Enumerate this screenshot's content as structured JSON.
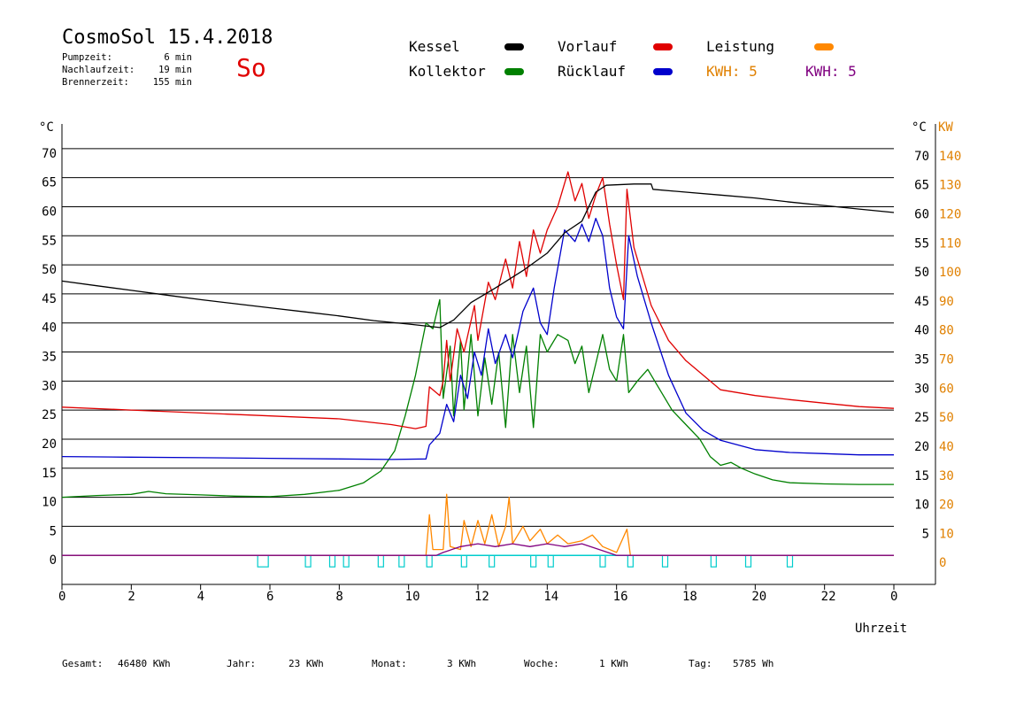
{
  "header": {
    "title": "CosmoSol 15.4.2018",
    "day": "So",
    "stats": [
      {
        "label": "Pumpzeit:",
        "value": "6 min"
      },
      {
        "label": "Nachlaufzeit:",
        "value": "19 min"
      },
      {
        "label": "Brennerzeit:",
        "value": "155 min"
      }
    ]
  },
  "legend": {
    "kessel": {
      "label": "Kessel",
      "color": "#000000"
    },
    "kollektor": {
      "label": "Kollektor",
      "color": "#008000"
    },
    "vorlauf": {
      "label": "Vorlauf",
      "color": "#e00000"
    },
    "ruecklauf": {
      "label": "Rücklauf",
      "color": "#0000cc"
    },
    "leistung": {
      "label": "Leistung",
      "color": "#ff8800"
    },
    "kwh1": {
      "label": "KWH: 5",
      "color": "#e08000"
    },
    "kwh2": {
      "label": "KWH: 5",
      "color": "#800080"
    }
  },
  "footer": [
    {
      "label": "Gesamt:",
      "value": "46480 KWh"
    },
    {
      "label": "Jahr:",
      "value": "23 KWh"
    },
    {
      "label": "Monat:",
      "value": "3 KWh"
    },
    {
      "label": "Woche:",
      "value": "1 KWh"
    },
    {
      "label": "Tag:",
      "value": "5785 Wh"
    }
  ],
  "chart_data": {
    "type": "line",
    "xlabel": "Uhrzeit",
    "ylabel_left": "°C",
    "ylabel_right_temp": "°C",
    "ylabel_right_power": "KW",
    "xlim": [
      0,
      24
    ],
    "ylim": [
      -5,
      75
    ],
    "x_ticks": [
      "0",
      "2",
      "4",
      "6",
      "8",
      "10",
      "12",
      "14",
      "16",
      "18",
      "20",
      "22",
      "0"
    ],
    "y_ticks_left": [
      "0",
      "5",
      "10",
      "15",
      "20",
      "25",
      "30",
      "35",
      "40",
      "45",
      "50",
      "55",
      "60",
      "65",
      "70"
    ],
    "y_ticks_right_temp": [
      "5",
      "10",
      "15",
      "20",
      "25",
      "30",
      "35",
      "40",
      "45",
      "50",
      "55",
      "60",
      "65",
      "70"
    ],
    "y_ticks_right_power": [
      "0",
      "10",
      "20",
      "30",
      "40",
      "50",
      "60",
      "70",
      "80",
      "90",
      "100",
      "110",
      "120",
      "130",
      "140"
    ],
    "grid": "horizontal",
    "series": [
      {
        "name": "Kessel",
        "color": "#000000",
        "points": [
          [
            0,
            47.2
          ],
          [
            1,
            46.4
          ],
          [
            2,
            45.6
          ],
          [
            3,
            44.8
          ],
          [
            4,
            44
          ],
          [
            5,
            43.3
          ],
          [
            6,
            42.6
          ],
          [
            7,
            41.9
          ],
          [
            8,
            41.2
          ],
          [
            9,
            40.4
          ],
          [
            10,
            39.8
          ],
          [
            10.9,
            39.2
          ],
          [
            11.3,
            40.5
          ],
          [
            11.8,
            43.5
          ],
          [
            12.5,
            46
          ],
          [
            13.3,
            49
          ],
          [
            14,
            52
          ],
          [
            14.5,
            55.5
          ],
          [
            15,
            57.5
          ],
          [
            15.4,
            62.5
          ],
          [
            15.7,
            63.7
          ],
          [
            16.5,
            63.9
          ],
          [
            17,
            63.9
          ],
          [
            17.05,
            63
          ],
          [
            18,
            62.5
          ],
          [
            19,
            62
          ],
          [
            20,
            61.5
          ],
          [
            21,
            60.8
          ],
          [
            22,
            60.2
          ],
          [
            23,
            59.6
          ],
          [
            24,
            59
          ]
        ]
      },
      {
        "name": "Vorlauf",
        "color": "#e00000",
        "points": [
          [
            0,
            25.5
          ],
          [
            2,
            25
          ],
          [
            4,
            24.5
          ],
          [
            6,
            24
          ],
          [
            8,
            23.5
          ],
          [
            9.5,
            22.5
          ],
          [
            10.2,
            21.8
          ],
          [
            10.5,
            22.2
          ],
          [
            10.6,
            29
          ],
          [
            10.9,
            27.5
          ],
          [
            11,
            30
          ],
          [
            11.1,
            37
          ],
          [
            11.2,
            30
          ],
          [
            11.4,
            39
          ],
          [
            11.6,
            35
          ],
          [
            11.9,
            43
          ],
          [
            12,
            37
          ],
          [
            12.3,
            47
          ],
          [
            12.5,
            44
          ],
          [
            12.8,
            51
          ],
          [
            13,
            46
          ],
          [
            13.2,
            54
          ],
          [
            13.4,
            48
          ],
          [
            13.6,
            56
          ],
          [
            13.8,
            52
          ],
          [
            14,
            56
          ],
          [
            14.3,
            60
          ],
          [
            14.6,
            66
          ],
          [
            14.8,
            61
          ],
          [
            15,
            64
          ],
          [
            15.2,
            58
          ],
          [
            15.4,
            62
          ],
          [
            15.6,
            65
          ],
          [
            15.8,
            57
          ],
          [
            16,
            50
          ],
          [
            16.2,
            44
          ],
          [
            16.3,
            63
          ],
          [
            16.5,
            53
          ],
          [
            17,
            43
          ],
          [
            17.5,
            37
          ],
          [
            18,
            33.5
          ],
          [
            18.5,
            31
          ],
          [
            19,
            28.5
          ],
          [
            20,
            27.5
          ],
          [
            21,
            26.8
          ],
          [
            22,
            26.2
          ],
          [
            23,
            25.6
          ],
          [
            24,
            25.3
          ]
        ]
      },
      {
        "name": "Rücklauf",
        "color": "#0000cc",
        "points": [
          [
            0,
            17
          ],
          [
            2,
            16.9
          ],
          [
            4,
            16.8
          ],
          [
            6,
            16.7
          ],
          [
            8,
            16.6
          ],
          [
            9.5,
            16.5
          ],
          [
            10.5,
            16.6
          ],
          [
            10.6,
            19
          ],
          [
            10.9,
            21
          ],
          [
            11.1,
            26
          ],
          [
            11.3,
            23
          ],
          [
            11.5,
            31
          ],
          [
            11.7,
            27
          ],
          [
            11.9,
            35
          ],
          [
            12.1,
            31
          ],
          [
            12.3,
            39
          ],
          [
            12.5,
            33
          ],
          [
            12.8,
            38
          ],
          [
            13,
            34
          ],
          [
            13.3,
            42
          ],
          [
            13.6,
            46
          ],
          [
            13.8,
            40
          ],
          [
            14,
            38
          ],
          [
            14.2,
            46
          ],
          [
            14.5,
            56
          ],
          [
            14.8,
            54
          ],
          [
            15,
            57
          ],
          [
            15.2,
            54
          ],
          [
            15.4,
            58
          ],
          [
            15.6,
            55
          ],
          [
            15.8,
            46
          ],
          [
            16,
            41
          ],
          [
            16.2,
            39
          ],
          [
            16.35,
            55
          ],
          [
            16.6,
            48
          ],
          [
            17,
            40
          ],
          [
            17.5,
            31
          ],
          [
            18,
            24.5
          ],
          [
            18.5,
            21.5
          ],
          [
            19,
            19.8
          ],
          [
            20,
            18.2
          ],
          [
            21,
            17.7
          ],
          [
            22,
            17.5
          ],
          [
            23,
            17.3
          ],
          [
            24,
            17.3
          ]
        ]
      },
      {
        "name": "Kollektor",
        "color": "#008000",
        "points": [
          [
            0,
            10
          ],
          [
            1,
            10.3
          ],
          [
            2,
            10.5
          ],
          [
            2.5,
            11
          ],
          [
            3,
            10.6
          ],
          [
            4,
            10.4
          ],
          [
            5,
            10.2
          ],
          [
            6,
            10.1
          ],
          [
            7,
            10.5
          ],
          [
            8,
            11.2
          ],
          [
            8.7,
            12.5
          ],
          [
            9.2,
            14.5
          ],
          [
            9.6,
            18
          ],
          [
            9.9,
            24
          ],
          [
            10.2,
            31
          ],
          [
            10.4,
            37
          ],
          [
            10.5,
            40
          ],
          [
            10.7,
            39
          ],
          [
            10.9,
            44
          ],
          [
            11,
            27
          ],
          [
            11.2,
            36
          ],
          [
            11.3,
            24
          ],
          [
            11.5,
            37
          ],
          [
            11.6,
            25
          ],
          [
            11.8,
            38
          ],
          [
            12,
            24
          ],
          [
            12.2,
            34
          ],
          [
            12.4,
            26
          ],
          [
            12.6,
            35
          ],
          [
            12.8,
            22
          ],
          [
            13,
            38
          ],
          [
            13.2,
            28
          ],
          [
            13.4,
            36
          ],
          [
            13.6,
            22
          ],
          [
            13.8,
            38
          ],
          [
            14,
            35
          ],
          [
            14.3,
            38
          ],
          [
            14.6,
            37
          ],
          [
            14.8,
            33
          ],
          [
            15,
            36
          ],
          [
            15.2,
            28
          ],
          [
            15.4,
            33
          ],
          [
            15.6,
            38
          ],
          [
            15.8,
            32
          ],
          [
            16,
            30
          ],
          [
            16.2,
            38
          ],
          [
            16.35,
            28
          ],
          [
            16.6,
            30
          ],
          [
            16.9,
            32
          ],
          [
            17.2,
            29
          ],
          [
            17.6,
            25
          ],
          [
            18,
            22.5
          ],
          [
            18.4,
            20
          ],
          [
            18.7,
            17
          ],
          [
            19,
            15.5
          ],
          [
            19.3,
            16
          ],
          [
            19.6,
            15
          ],
          [
            20,
            14
          ],
          [
            20.5,
            13
          ],
          [
            21,
            12.5
          ],
          [
            22,
            12.3
          ],
          [
            23,
            12.2
          ],
          [
            24,
            12.2
          ]
        ]
      },
      {
        "name": "Leistung",
        "color": "#ff8800",
        "axis": "power",
        "points": [
          [
            0,
            0
          ],
          [
            10.5,
            0
          ],
          [
            10.6,
            14
          ],
          [
            10.7,
            2
          ],
          [
            11,
            2
          ],
          [
            11.1,
            21
          ],
          [
            11.2,
            3
          ],
          [
            11.5,
            2
          ],
          [
            11.6,
            12
          ],
          [
            11.8,
            3
          ],
          [
            12,
            12
          ],
          [
            12.2,
            4
          ],
          [
            12.4,
            14
          ],
          [
            12.6,
            3
          ],
          [
            12.8,
            10
          ],
          [
            12.9,
            20
          ],
          [
            13,
            4
          ],
          [
            13.3,
            10
          ],
          [
            13.5,
            5
          ],
          [
            13.8,
            9
          ],
          [
            14,
            4
          ],
          [
            14.3,
            7
          ],
          [
            14.6,
            4
          ],
          [
            15,
            5
          ],
          [
            15.3,
            7
          ],
          [
            15.6,
            3
          ],
          [
            16,
            1
          ],
          [
            16.3,
            9
          ],
          [
            16.4,
            0
          ],
          [
            24,
            0
          ]
        ]
      },
      {
        "name": "KWH",
        "color": "#800080",
        "axis": "power",
        "points": [
          [
            0,
            0
          ],
          [
            10.8,
            0
          ],
          [
            11,
            1
          ],
          [
            11.5,
            3
          ],
          [
            12,
            4
          ],
          [
            12.5,
            3
          ],
          [
            13,
            4
          ],
          [
            13.5,
            3
          ],
          [
            14,
            4
          ],
          [
            14.5,
            3
          ],
          [
            15,
            4
          ],
          [
            15.5,
            2
          ],
          [
            16,
            0
          ],
          [
            24,
            0
          ]
        ]
      }
    ],
    "pump_pulses": [
      5.8,
      7.1,
      7.8,
      8.2,
      9.2,
      9.8,
      10.6,
      11.6,
      12.4,
      13.6,
      14.1,
      15.6,
      16.4,
      17.4,
      18.8,
      19.8,
      21.0
    ]
  }
}
